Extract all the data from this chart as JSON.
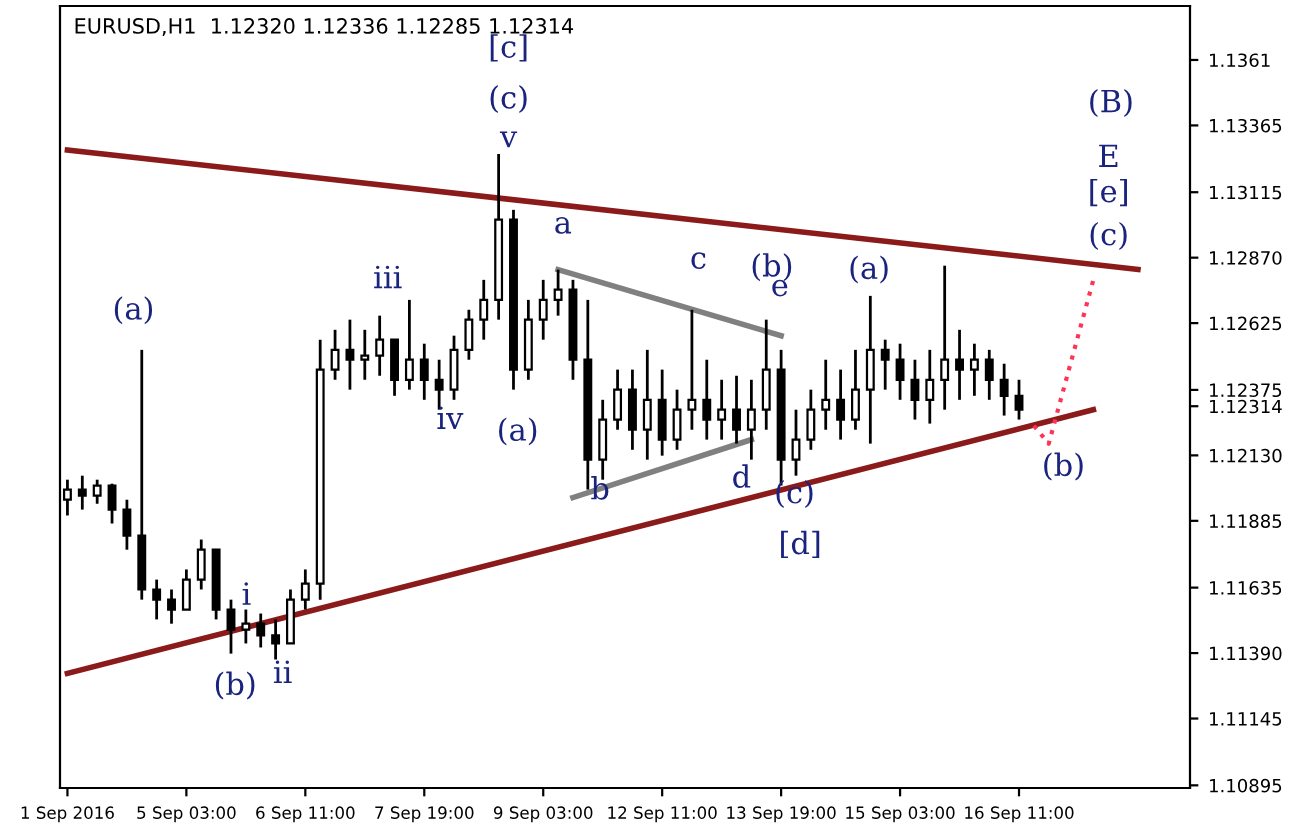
{
  "chart_data": {
    "type": "candlestick",
    "title": "EURUSD,H1  1.12320 1.12336 1.12285 1.12314",
    "color": "#000000",
    "categories": [
      "1 Sep 2016",
      null,
      null,
      null,
      null,
      null,
      null,
      null,
      "5 Sep 03:00",
      null,
      null,
      null,
      null,
      null,
      null,
      null,
      "6 Sep 11:00",
      null,
      null,
      null,
      null,
      null,
      null,
      null,
      "7 Sep 19:00",
      null,
      null,
      null,
      null,
      null,
      null,
      null,
      "9 Sep 03:00",
      null,
      null,
      null,
      null,
      null,
      null,
      null,
      "12 Sep 11:00",
      null,
      null,
      null,
      null,
      null,
      null,
      null,
      "13 Sep 19:00",
      null,
      null,
      null,
      null,
      null,
      null,
      null,
      "15 Sep 03:00",
      null,
      null,
      null,
      null,
      null,
      null,
      null,
      "16 Sep 11:00",
      null,
      null,
      null,
      null,
      null,
      null,
      null,
      null,
      null,
      null,
      null
    ],
    "ohlc": [
      [
        1.11964,
        1.12039,
        1.11905,
        1.12002
      ],
      [
        1.12002,
        1.12054,
        1.11927,
        1.11979
      ],
      [
        1.11979,
        1.12039,
        1.11949,
        1.12017
      ],
      [
        1.12017,
        1.12024,
        1.11875,
        1.11927
      ],
      [
        1.11927,
        1.11964,
        1.11777,
        1.1183
      ],
      [
        1.1183,
        1.12525,
        1.1159,
        1.11628
      ],
      [
        1.11628,
        1.11665,
        1.11516,
        1.1159
      ],
      [
        1.1159,
        1.11628,
        1.115,
        1.11553
      ],
      [
        1.11553,
        1.11703,
        1.11553,
        1.11665
      ],
      [
        1.11665,
        1.11815,
        1.11628,
        1.11777
      ],
      [
        1.11777,
        1.11777,
        1.11516,
        1.11553
      ],
      [
        1.11553,
        1.1159,
        1.11388,
        1.11478
      ],
      [
        1.11478,
        1.11553,
        1.11426,
        1.115
      ],
      [
        1.115,
        1.11538,
        1.11411,
        1.11456
      ],
      [
        1.11456,
        1.11516,
        1.11366,
        1.11426
      ],
      [
        1.11426,
        1.11628,
        1.11426,
        1.1159
      ],
      [
        1.1159,
        1.11703,
        1.11553,
        1.1165
      ],
      [
        1.1165,
        1.12563,
        1.1159,
        1.12451
      ],
      [
        1.12451,
        1.126,
        1.12413,
        1.12525
      ],
      [
        1.12525,
        1.12638,
        1.12376,
        1.12488
      ],
      [
        1.12488,
        1.126,
        1.12413,
        1.12503
      ],
      [
        1.12503,
        1.12653,
        1.12428,
        1.12563
      ],
      [
        1.12563,
        1.12563,
        1.12353,
        1.12413
      ],
      [
        1.12413,
        1.12712,
        1.12376,
        1.12488
      ],
      [
        1.12488,
        1.12548,
        1.12338,
        1.12413
      ],
      [
        1.12413,
        1.12488,
        1.12301,
        1.12376
      ],
      [
        1.12376,
        1.12578,
        1.12338,
        1.12525
      ],
      [
        1.12525,
        1.12675,
        1.12488,
        1.12638
      ],
      [
        1.12638,
        1.12787,
        1.12563,
        1.12712
      ],
      [
        1.12712,
        1.13258,
        1.12638,
        1.13012
      ],
      [
        1.13012,
        1.13049,
        1.12376,
        1.12451
      ],
      [
        1.12451,
        1.12712,
        1.12413,
        1.12638
      ],
      [
        1.12638,
        1.12787,
        1.12563,
        1.12712
      ],
      [
        1.12712,
        1.12825,
        1.12653,
        1.1275
      ],
      [
        1.1275,
        1.12787,
        1.12413,
        1.12488
      ],
      [
        1.12488,
        1.12712,
        1.12002,
        1.12114
      ],
      [
        1.12114,
        1.12338,
        1.12039,
        1.12264
      ],
      [
        1.12264,
        1.12451,
        1.12226,
        1.12376
      ],
      [
        1.12376,
        1.12451,
        1.12151,
        1.12226
      ],
      [
        1.12226,
        1.12525,
        1.12114,
        1.12338
      ],
      [
        1.12338,
        1.12451,
        1.12129,
        1.12189
      ],
      [
        1.12189,
        1.12376,
        1.12151,
        1.12301
      ],
      [
        1.12301,
        1.12675,
        1.12226,
        1.12338
      ],
      [
        1.12338,
        1.12488,
        1.12189,
        1.12264
      ],
      [
        1.12264,
        1.12413,
        1.12189,
        1.12301
      ],
      [
        1.12301,
        1.12428,
        1.12174,
        1.12226
      ],
      [
        1.12226,
        1.12413,
        1.12114,
        1.12301
      ],
      [
        1.12301,
        1.12638,
        1.12226,
        1.12451
      ],
      [
        1.12451,
        1.12525,
        1.12017,
        1.12114
      ],
      [
        1.12114,
        1.12301,
        1.12054,
        1.12189
      ],
      [
        1.12189,
        1.12376,
        1.12151,
        1.12301
      ],
      [
        1.12301,
        1.12488,
        1.12226,
        1.12338
      ],
      [
        1.12338,
        1.12451,
        1.12189,
        1.12264
      ],
      [
        1.12264,
        1.12525,
        1.12226,
        1.12376
      ],
      [
        1.12376,
        1.12727,
        1.12174,
        1.12525
      ],
      [
        1.12525,
        1.12563,
        1.12376,
        1.12488
      ],
      [
        1.12488,
        1.12548,
        1.12338,
        1.12413
      ],
      [
        1.12413,
        1.12488,
        1.12264,
        1.12338
      ],
      [
        1.12338,
        1.12525,
        1.12249,
        1.12413
      ],
      [
        1.12413,
        1.1284,
        1.12301,
        1.12488
      ],
      [
        1.12488,
        1.126,
        1.12338,
        1.12451
      ],
      [
        1.12451,
        1.12548,
        1.12353,
        1.12488
      ],
      [
        1.12488,
        1.12525,
        1.12338,
        1.12413
      ],
      [
        1.12413,
        1.12473,
        1.12279,
        1.12353
      ],
      [
        1.12353,
        1.12413,
        1.12264,
        1.12301
      ],
      null,
      null,
      null,
      null,
      null,
      null,
      null,
      null,
      null,
      null,
      null
    ],
    "series": [
      {
        "type": "line",
        "values": [
          1.13273,
          null,
          null,
          null,
          null,
          null,
          null,
          null,
          null,
          null,
          null,
          null,
          null,
          null,
          null,
          null,
          null,
          null,
          null,
          null,
          null,
          null,
          null,
          null,
          null,
          null,
          null,
          null,
          null,
          null,
          null,
          null,
          null,
          null,
          null,
          null,
          null,
          null,
          null,
          null,
          null,
          null,
          null,
          null,
          null,
          null,
          null,
          null,
          null,
          null,
          null,
          null,
          null,
          null,
          null,
          null,
          null,
          null,
          null,
          null,
          null,
          null,
          null,
          null,
          null,
          null,
          null,
          null,
          null,
          null,
          null,
          null,
          1.12826,
          null,
          null,
          null
        ],
        "color": "#8b1a1a",
        "line_style": "solid"
      },
      {
        "type": "line",
        "values": [
          1.11314,
          null,
          null,
          null,
          null,
          null,
          null,
          null,
          null,
          null,
          null,
          null,
          null,
          null,
          null,
          null,
          null,
          null,
          null,
          null,
          null,
          null,
          null,
          null,
          null,
          null,
          null,
          null,
          null,
          null,
          null,
          null,
          null,
          null,
          null,
          null,
          null,
          null,
          null,
          null,
          null,
          null,
          null,
          null,
          null,
          null,
          null,
          null,
          null,
          null,
          null,
          null,
          null,
          null,
          null,
          null,
          null,
          null,
          null,
          null,
          null,
          null,
          null,
          null,
          null,
          null,
          null,
          null,
          null,
          1.12301,
          null,
          null,
          null,
          null,
          null,
          null
        ],
        "color": "#8b1a1a",
        "line_style": "solid"
      },
      {
        "type": "line",
        "values": [
          null,
          null,
          null,
          null,
          null,
          null,
          null,
          null,
          null,
          null,
          null,
          null,
          null,
          null,
          null,
          null,
          null,
          null,
          null,
          null,
          null,
          null,
          null,
          null,
          null,
          null,
          null,
          null,
          null,
          null,
          null,
          null,
          null,
          1.12825,
          null,
          null,
          null,
          null,
          null,
          null,
          null,
          null,
          null,
          null,
          null,
          null,
          null,
          null,
          1.12578,
          null,
          null,
          null,
          null,
          null,
          null,
          null,
          null,
          null,
          null,
          null,
          null,
          null,
          null,
          null,
          null,
          null,
          null,
          null,
          null,
          null,
          null,
          null,
          null,
          null,
          null,
          null
        ],
        "color": "#808080",
        "line_style": "solid"
      },
      {
        "type": "line",
        "values": [
          null,
          null,
          null,
          null,
          null,
          null,
          null,
          null,
          null,
          null,
          null,
          null,
          null,
          null,
          null,
          null,
          null,
          null,
          null,
          null,
          null,
          null,
          null,
          null,
          null,
          null,
          null,
          null,
          null,
          null,
          null,
          null,
          null,
          null,
          1.11972,
          null,
          null,
          null,
          null,
          null,
          null,
          null,
          null,
          null,
          null,
          null,
          1.12189,
          null,
          null,
          null,
          null,
          null,
          null,
          null,
          null,
          null,
          null,
          null,
          null,
          null,
          null,
          null,
          null,
          null,
          null,
          null,
          null,
          null,
          null,
          null,
          null,
          null,
          null,
          null,
          null,
          null
        ],
        "color": "#808080",
        "line_style": "solid"
      },
      {
        "type": "line",
        "values": [
          null,
          null,
          null,
          null,
          null,
          null,
          null,
          null,
          null,
          null,
          null,
          null,
          null,
          null,
          null,
          null,
          null,
          null,
          null,
          null,
          null,
          null,
          null,
          null,
          null,
          null,
          null,
          null,
          null,
          null,
          null,
          null,
          null,
          null,
          null,
          null,
          null,
          null,
          null,
          null,
          null,
          null,
          null,
          null,
          null,
          null,
          null,
          null,
          null,
          null,
          null,
          null,
          null,
          null,
          null,
          null,
          null,
          null,
          null,
          null,
          null,
          null,
          null,
          null,
          null,
          1.12241,
          1.12174,
          null,
          null,
          1.12787,
          null,
          null,
          null,
          null,
          null,
          null
        ],
        "color": "#ff3355",
        "line_style": "dotted"
      }
    ],
    "annotations": [
      "[c]",
      "(c)",
      "v",
      "(a)",
      "iii",
      "iv",
      "(a)",
      "a",
      "b",
      "c",
      "(b)",
      "e",
      "d",
      "(c)",
      "[d]",
      "(a)",
      "i",
      "(b)",
      "ii",
      "(B)",
      "E",
      "[e]",
      "(c)",
      "(b)"
    ],
    "ylim": [
      1.10885,
      1.13812
    ],
    "yticks": [
      1.1361,
      {
        "value": 1.13365,
        "label": "1.13365"
      },
      {
        "value": 1.13115,
        "label": "1.13115"
      },
      {
        "value": 1.1287,
        "label": "1.12870"
      },
      {
        "value": 1.12625,
        "label": "1.12625"
      },
      {
        "value": 1.12375,
        "label": "1.12375"
      },
      {
        "value": 1.12314,
        "label": "1.12314"
      },
      {
        "value": 1.1213,
        "label": "1.12130"
      },
      {
        "value": 1.11885,
        "label": "1.11885"
      },
      {
        "value": 1.11635,
        "label": "1.11635"
      },
      {
        "value": 1.1139,
        "label": "1.11390"
      },
      {
        "value": 1.11145,
        "label": "1.11145"
      },
      {
        "value": 1.10895,
        "label": "1.10895"
      }
    ],
    "grid": false,
    "legend": false
  }
}
